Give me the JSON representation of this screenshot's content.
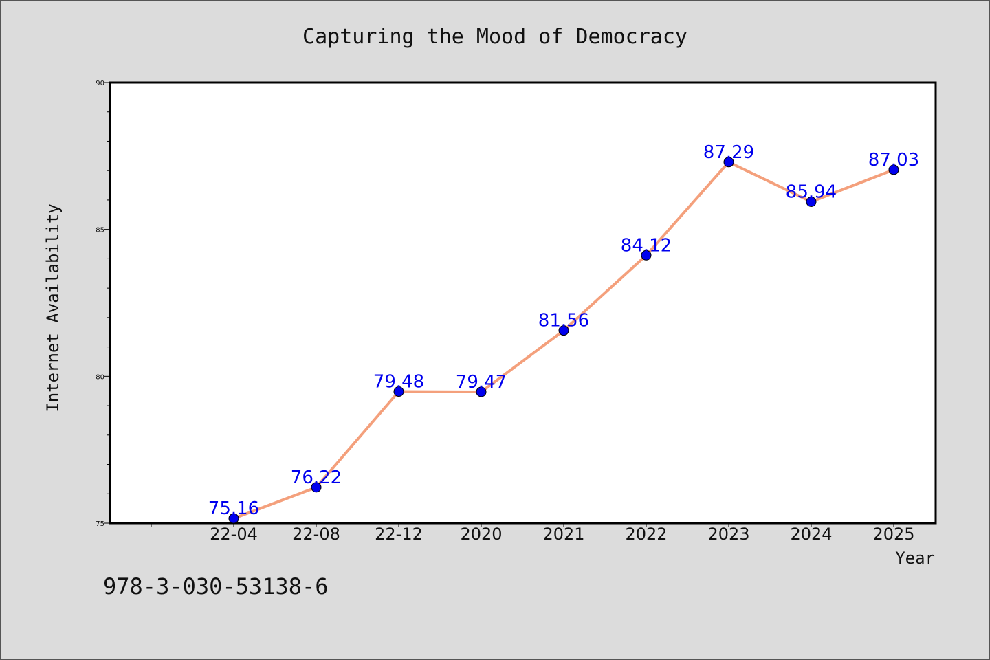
{
  "chart_data": {
    "type": "line",
    "title": "Capturing the Mood of Democracy",
    "xlabel": "Year",
    "ylabel": "Internet Availability",
    "categories": [
      "22-04",
      "22-08",
      "22-12",
      "2020",
      "2021",
      "2022",
      "2023",
      "2024",
      "2025"
    ],
    "values": [
      75.16,
      76.22,
      79.48,
      79.47,
      81.56,
      84.12,
      87.29,
      85.94,
      87.03
    ],
    "data_labels": [
      "75.16",
      "76.22",
      "79.48",
      "79.47",
      "81.56",
      "84.12",
      "87.29",
      "85.94",
      "87.03"
    ],
    "ylim": [
      75,
      90
    ],
    "yticks": [
      "75",
      "80",
      "85",
      "90"
    ],
    "grid": false,
    "line_color": "#f4a07c",
    "marker_color": "#0000ee",
    "label_color": "#0000ee"
  },
  "footnote": "978-3-030-53138-6"
}
